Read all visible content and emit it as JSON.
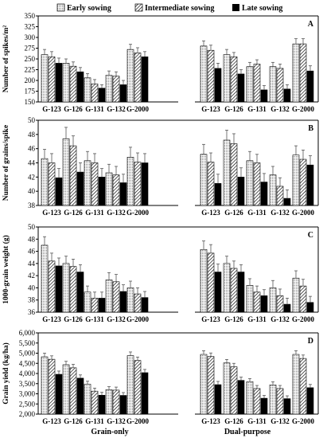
{
  "legend": [
    {
      "name": "Early sowing",
      "pattern": "dotted-gray"
    },
    {
      "name": "Intermediate sowing",
      "pattern": "diagonal-hatch"
    },
    {
      "name": "Late sowing",
      "pattern": "solid-black"
    }
  ],
  "groups": [
    "Grain-only",
    "Dual-purpose"
  ],
  "colors": {
    "late": "#000000",
    "hatch": "#000000",
    "dots": "#777777",
    "axis": "#000000"
  },
  "chart_data": [
    {
      "type": "bar",
      "panel": "A",
      "ylabel": "Number of spikes/m²",
      "ylim": [
        150,
        350
      ],
      "yticks": [
        150,
        175,
        200,
        225,
        250,
        275,
        300,
        325,
        350
      ],
      "categories": [
        "G-123",
        "G-126",
        "G-131",
        "G-132",
        "G-2000"
      ],
      "series": [
        {
          "name": "Early sowing",
          "grain_only": [
            260,
            240,
            206,
            212,
            272
          ],
          "dual_purpose": [
            280,
            260,
            232,
            232,
            285
          ],
          "err_grain_only": [
            12,
            10,
            10,
            10,
            12
          ],
          "err_dual_purpose": [
            12,
            12,
            10,
            10,
            12
          ]
        },
        {
          "name": "Intermediate sowing",
          "grain_only": [
            255,
            233,
            192,
            210,
            264
          ],
          "dual_purpose": [
            270,
            255,
            238,
            228,
            285
          ],
          "err_grain_only": [
            12,
            10,
            10,
            10,
            12
          ],
          "err_dual_purpose": [
            12,
            10,
            10,
            10,
            12
          ]
        },
        {
          "name": "Late sowing",
          "grain_only": [
            240,
            220,
            182,
            190,
            255
          ],
          "dual_purpose": [
            228,
            215,
            178,
            180,
            222
          ],
          "err_grain_only": [
            12,
            10,
            8,
            10,
            12
          ],
          "err_dual_purpose": [
            12,
            10,
            10,
            10,
            12
          ]
        }
      ]
    },
    {
      "type": "bar",
      "panel": "B",
      "ylabel": "Number of grains/spike",
      "ylim": [
        38,
        50
      ],
      "yticks": [
        38,
        40,
        42,
        44,
        46,
        48,
        50
      ],
      "categories": [
        "G-123",
        "G-126",
        "G-131",
        "G-132",
        "G-2000"
      ],
      "series": [
        {
          "name": "Early sowing",
          "grain_only": [
            44.6,
            47.4,
            44.3,
            42.6,
            44.8
          ],
          "dual_purpose": [
            45.2,
            47.2,
            44.3,
            42.3,
            45.1
          ],
          "err_grain_only": [
            1.3,
            1.6,
            1.3,
            1.2,
            1.4
          ],
          "err_dual_purpose": [
            1.4,
            1.4,
            1.3,
            1.2,
            1.3
          ]
        },
        {
          "name": "Intermediate sowing",
          "grain_only": [
            44.0,
            46.4,
            44.0,
            42.3,
            44.1
          ],
          "dual_purpose": [
            44.1,
            46.7,
            44.0,
            40.7,
            44.5
          ],
          "err_grain_only": [
            1.3,
            1.4,
            1.3,
            1.2,
            1.3
          ],
          "err_dual_purpose": [
            1.3,
            1.4,
            1.2,
            1.2,
            1.3
          ]
        },
        {
          "name": "Late sowing",
          "grain_only": [
            41.9,
            42.7,
            42.0,
            41.2,
            44.0
          ],
          "dual_purpose": [
            41.1,
            42.0,
            41.3,
            39.0,
            43.7
          ],
          "err_grain_only": [
            1.3,
            1.3,
            1.2,
            1.2,
            1.3
          ],
          "err_dual_purpose": [
            1.3,
            1.3,
            1.2,
            1.2,
            1.3
          ]
        }
      ]
    },
    {
      "type": "bar",
      "panel": "C",
      "ylabel": "1000-grain weight (g)",
      "ylim": [
        36,
        50
      ],
      "yticks": [
        36,
        38,
        40,
        42,
        44,
        46,
        48,
        50
      ],
      "categories": [
        "G-123",
        "G-126",
        "G-131",
        "G-132",
        "G-2000"
      ],
      "series": [
        {
          "name": "Early sowing",
          "grain_only": [
            47.0,
            44.0,
            39.3,
            41.3,
            40.0
          ],
          "dual_purpose": [
            46.3,
            44.0,
            40.4,
            40.0,
            41.6
          ],
          "err_grain_only": [
            1.4,
            1.2,
            1.0,
            1.2,
            1.1
          ],
          "err_dual_purpose": [
            1.4,
            1.2,
            1.1,
            1.2,
            1.2
          ]
        },
        {
          "name": "Intermediate sowing",
          "grain_only": [
            44.4,
            43.5,
            38.3,
            41.0,
            39.0
          ],
          "dual_purpose": [
            45.7,
            43.2,
            39.3,
            38.7,
            40.3
          ],
          "err_grain_only": [
            1.3,
            1.2,
            1.0,
            1.2,
            1.0
          ],
          "err_dual_purpose": [
            1.4,
            1.2,
            1.0,
            1.1,
            1.1
          ]
        },
        {
          "name": "Late sowing",
          "grain_only": [
            43.6,
            42.6,
            38.3,
            39.4,
            38.4
          ],
          "dual_purpose": [
            42.6,
            42.6,
            38.7,
            37.3,
            37.6
          ],
          "err_grain_only": [
            1.3,
            1.2,
            1.0,
            1.1,
            1.0
          ],
          "err_dual_purpose": [
            1.3,
            1.2,
            1.0,
            1.0,
            1.0
          ]
        }
      ]
    },
    {
      "type": "bar",
      "panel": "D",
      "ylabel": "Grain yield (kg/ha)",
      "ylim": [
        2000,
        6000
      ],
      "yticks": [
        2000,
        2500,
        3000,
        3500,
        4000,
        4500,
        5000,
        5500,
        6000
      ],
      "ytick_labels": [
        "2,000",
        "2,500",
        "3,000",
        "3,500",
        "4,000",
        "4,500",
        "5,000",
        "5,500",
        "6,000"
      ],
      "categories": [
        "G-123",
        "G-126",
        "G-131",
        "G-132",
        "G-2000"
      ],
      "series": [
        {
          "name": "Early sowing",
          "grain_only": [
            4820,
            4430,
            3470,
            3200,
            4880
          ],
          "dual_purpose": [
            4940,
            4520,
            3600,
            3440,
            4940
          ],
          "err_grain_only": [
            180,
            170,
            150,
            150,
            180
          ],
          "err_dual_purpose": [
            180,
            170,
            150,
            150,
            180
          ]
        },
        {
          "name": "Intermediate sowing",
          "grain_only": [
            4700,
            4280,
            3130,
            3180,
            4640
          ],
          "dual_purpose": [
            4840,
            4330,
            3260,
            3260,
            4740
          ],
          "err_grain_only": [
            170,
            170,
            150,
            150,
            170
          ],
          "err_dual_purpose": [
            170,
            170,
            150,
            150,
            170
          ]
        },
        {
          "name": "Late sowing",
          "grain_only": [
            3960,
            3770,
            2930,
            2920,
            4040
          ],
          "dual_purpose": [
            3450,
            3660,
            2780,
            2760,
            3300
          ],
          "err_grain_only": [
            160,
            160,
            140,
            140,
            160
          ],
          "err_dual_purpose": [
            160,
            160,
            140,
            140,
            160
          ]
        }
      ]
    }
  ]
}
